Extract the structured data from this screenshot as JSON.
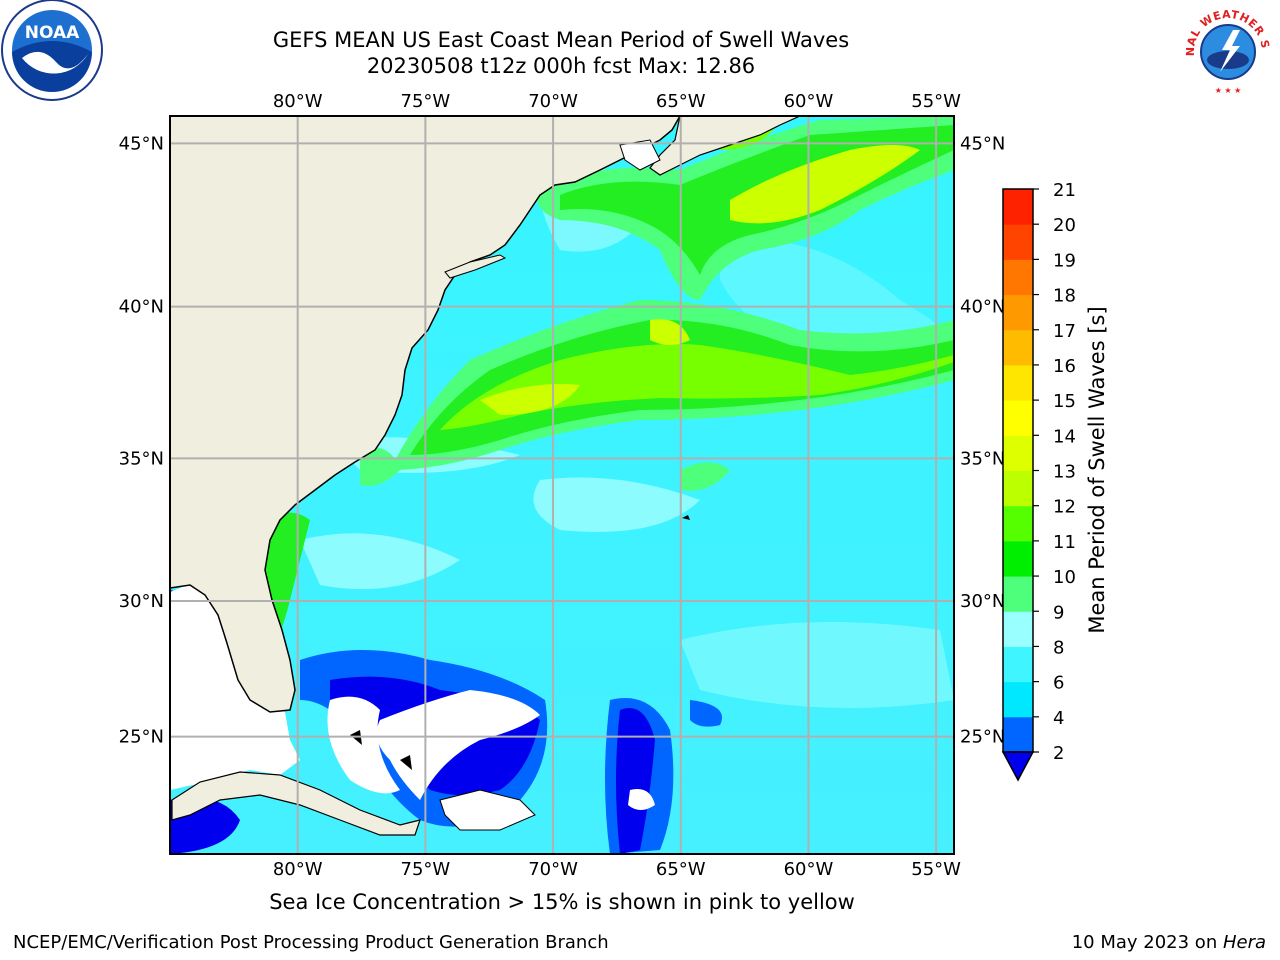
{
  "title": {
    "line1": "GEFS MEAN US East Coast Mean Period of Swell Waves",
    "line2": "20230508 t12z 000h fcst   Max: 12.86"
  },
  "logos": {
    "noaa_text": "NOAA",
    "nws_text": "NATIONAL WEATHER SERVICE"
  },
  "map": {
    "lon_ticks": [
      "80°W",
      "75°W",
      "70°W",
      "65°W",
      "60°W",
      "55°W"
    ],
    "lat_ticks": [
      "45°N",
      "40°N",
      "35°N",
      "30°N",
      "25°N"
    ],
    "lon_values": [
      -80,
      -75,
      -70,
      -65,
      -60,
      -55
    ],
    "lat_values": [
      45,
      40,
      35,
      30,
      25
    ],
    "extent": {
      "lon_min": -85,
      "lon_max": -54.3,
      "lat_min": 20.5,
      "lat_max": 45.8
    },
    "colors": {
      "land": "#efeedf",
      "grid": "#b0b0b0"
    }
  },
  "colorbar": {
    "label": "Mean Period of Swell Waves [s]",
    "ticks": [
      "2",
      "4",
      "6",
      "8",
      "9",
      "10",
      "11",
      "12",
      "13",
      "14",
      "15",
      "16",
      "17",
      "18",
      "19",
      "20",
      "21"
    ],
    "colors": [
      "#0066ff",
      "#00e8ff",
      "#3ff5ff",
      "#99ffff",
      "#4dff7a",
      "#00ee00",
      "#55ff00",
      "#bbff00",
      "#ddff00",
      "#ffff00",
      "#ffe600",
      "#ffbb00",
      "#ff9900",
      "#ff7700",
      "#ff4400",
      "#ff2200"
    ],
    "under_color": "#0000ee"
  },
  "caption": "Sea Ice Concentration > 15% is shown in pink to yellow",
  "footer": {
    "left": "NCEP/EMC/Verification Post Processing Product Generation Branch",
    "date": "10 May 2023 on ",
    "machine": "Hera"
  }
}
